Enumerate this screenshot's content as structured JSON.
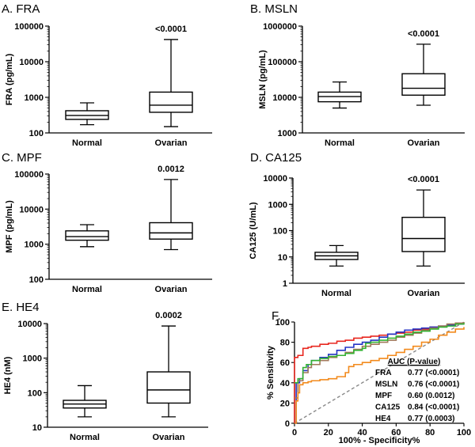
{
  "chart_data": [
    {
      "id": "A",
      "type": "boxplot",
      "title": "A. FRA",
      "ylabel": "FRA (pg/mL)",
      "yscale": "log",
      "ylim": [
        100,
        100000
      ],
      "yticks": [
        100,
        1000,
        10000,
        100000
      ],
      "ytick_labels": [
        "100",
        "1000",
        "10000",
        "100000"
      ],
      "categories": [
        "Normal",
        "Ovarian"
      ],
      "pvalue": "<0.0001",
      "boxes": [
        {
          "min": 170,
          "q1": 240,
          "median": 310,
          "q3": 420,
          "max": 700
        },
        {
          "min": 150,
          "q1": 380,
          "median": 600,
          "q3": 1400,
          "max": 42000
        }
      ]
    },
    {
      "id": "B",
      "type": "boxplot",
      "title": "B. MSLN",
      "ylabel": "MSLN (pg/mL)",
      "yscale": "log",
      "ylim": [
        1000,
        1000000
      ],
      "yticks": [
        1000,
        10000,
        100000,
        1000000
      ],
      "ytick_labels": [
        "1000",
        "10000",
        "100000",
        "1000000"
      ],
      "categories": [
        "Normal",
        "Ovarian"
      ],
      "pvalue": "<0.0001",
      "boxes": [
        {
          "min": 5000,
          "q1": 7500,
          "median": 10500,
          "q3": 14000,
          "max": 27000
        },
        {
          "min": 6000,
          "q1": 11500,
          "median": 18000,
          "q3": 46000,
          "max": 310000
        }
      ]
    },
    {
      "id": "C",
      "type": "boxplot",
      "title": "C. MPF",
      "ylabel": "MPF (pg/mL)",
      "yscale": "log",
      "ylim": [
        100,
        100000
      ],
      "yticks": [
        100,
        1000,
        10000,
        100000
      ],
      "ytick_labels": [
        "100",
        "1000",
        "10000",
        "100000"
      ],
      "categories": [
        "Normal",
        "Ovarian"
      ],
      "pvalue": "0.0012",
      "boxes": [
        {
          "min": 850,
          "q1": 1300,
          "median": 1650,
          "q3": 2400,
          "max": 3600
        },
        {
          "min": 700,
          "q1": 1400,
          "median": 2100,
          "q3": 4100,
          "max": 70000
        }
      ]
    },
    {
      "id": "D",
      "type": "boxplot",
      "title": "D. CA125",
      "ylabel": "CA125 (U/mL)",
      "yscale": "log",
      "ylim": [
        1,
        10000
      ],
      "yticks": [
        1,
        10,
        100,
        1000,
        10000
      ],
      "ytick_labels": [
        "1",
        "10",
        "100",
        "1000",
        "10000"
      ],
      "categories": [
        "Normal",
        "Ovarian"
      ],
      "pvalue": "<0.0001",
      "boxes": [
        {
          "min": 4.5,
          "q1": 8,
          "median": 11,
          "q3": 15,
          "max": 27
        },
        {
          "min": 4.5,
          "q1": 16,
          "median": 50,
          "q3": 320,
          "max": 3500
        }
      ]
    },
    {
      "id": "E",
      "type": "boxplot",
      "title": "E. HE4",
      "ylabel": "HE4 (nM)",
      "yscale": "log",
      "ylim": [
        10,
        10000
      ],
      "yticks": [
        10,
        100,
        1000,
        10000
      ],
      "ytick_labels": [
        "10",
        "100",
        "1000",
        "10000"
      ],
      "categories": [
        "Normal",
        "Ovarian"
      ],
      "pvalue": "0.0002",
      "boxes": [
        {
          "min": 20,
          "q1": 36,
          "median": 47,
          "q3": 60,
          "max": 160
        },
        {
          "min": 20,
          "q1": 50,
          "median": 120,
          "q3": 400,
          "max": 8500
        }
      ]
    },
    {
      "id": "F",
      "type": "line",
      "title": "F.",
      "xlabel": "100% - Specificity%",
      "ylabel": "% Sensitivity",
      "xlim": [
        0,
        100
      ],
      "ylim": [
        0,
        100
      ],
      "xticks": [
        0,
        20,
        40,
        60,
        80,
        100
      ],
      "yticks": [
        0,
        20,
        40,
        60,
        80,
        100
      ],
      "legend_title": "AUC (P-value)",
      "reference_line": {
        "x": [
          0,
          100
        ],
        "y": [
          0,
          100
        ],
        "color": "#888888"
      },
      "series": [
        {
          "name": "FRA",
          "auc": "0.77 (<0.0001)",
          "color": "#e8261e",
          "x": [
            0,
            0,
            2,
            2,
            5,
            5,
            8,
            10,
            15,
            20,
            25,
            30,
            35,
            40,
            45,
            50,
            55,
            60,
            65,
            70,
            75,
            80,
            85,
            90,
            95,
            100
          ],
          "y": [
            0,
            65,
            65,
            67,
            67,
            74,
            75,
            76,
            78,
            79,
            81,
            82,
            84,
            85,
            86,
            87,
            88,
            89,
            90,
            92,
            93,
            95,
            96,
            97,
            98,
            98
          ]
        },
        {
          "name": "MSLN",
          "auc": "0.76 (<0.0001)",
          "color": "#2433c4",
          "x": [
            0,
            1,
            1,
            3,
            5,
            8,
            10,
            15,
            20,
            25,
            30,
            35,
            40,
            45,
            50,
            55,
            60,
            65,
            70,
            75,
            80,
            85,
            90,
            95,
            100
          ],
          "y": [
            0,
            0,
            40,
            44,
            52,
            58,
            62,
            65,
            68,
            72,
            75,
            78,
            80,
            82,
            85,
            88,
            90,
            92,
            93,
            94,
            95,
            96,
            97,
            98,
            98
          ]
        },
        {
          "name": "MPF",
          "auc": "0.60 (0.0012)",
          "color": "#a0785a",
          "x": [
            0,
            2,
            5,
            8,
            10,
            15,
            20,
            25,
            30,
            35,
            40,
            45,
            50,
            55,
            60,
            65,
            70,
            75,
            80,
            85,
            90,
            95,
            100
          ],
          "y": [
            25,
            42,
            50,
            55,
            58,
            62,
            65,
            67,
            70,
            73,
            76,
            78,
            80,
            82,
            85,
            87,
            89,
            92,
            94,
            96,
            98,
            99,
            100
          ]
        },
        {
          "name": "CA125",
          "auc": "0.84 (<0.0001)",
          "color": "#35b233",
          "x": [
            0,
            2,
            5,
            7,
            10,
            15,
            20,
            25,
            30,
            35,
            40,
            42,
            45,
            50,
            55,
            60,
            65,
            70,
            75,
            80,
            85,
            90,
            95,
            100
          ],
          "y": [
            40,
            44,
            55,
            58,
            62,
            64,
            66,
            67,
            69,
            72,
            74,
            79,
            80,
            82,
            84,
            86,
            88,
            90,
            91,
            93,
            95,
            96,
            98,
            99
          ]
        },
        {
          "name": "HE4",
          "auc": "0.77 (0.0003)",
          "color": "#f28a1c",
          "x": [
            0,
            1,
            2,
            3,
            5,
            8,
            10,
            15,
            20,
            25,
            30,
            32,
            35,
            40,
            45,
            50,
            55,
            60,
            65,
            70,
            75,
            80,
            85,
            90,
            95,
            100
          ],
          "y": [
            0,
            22,
            30,
            38,
            40,
            41,
            42,
            43,
            44,
            46,
            50,
            56,
            58,
            60,
            62,
            64,
            67,
            70,
            73,
            76,
            80,
            83,
            87,
            90,
            93,
            95
          ]
        }
      ]
    }
  ]
}
